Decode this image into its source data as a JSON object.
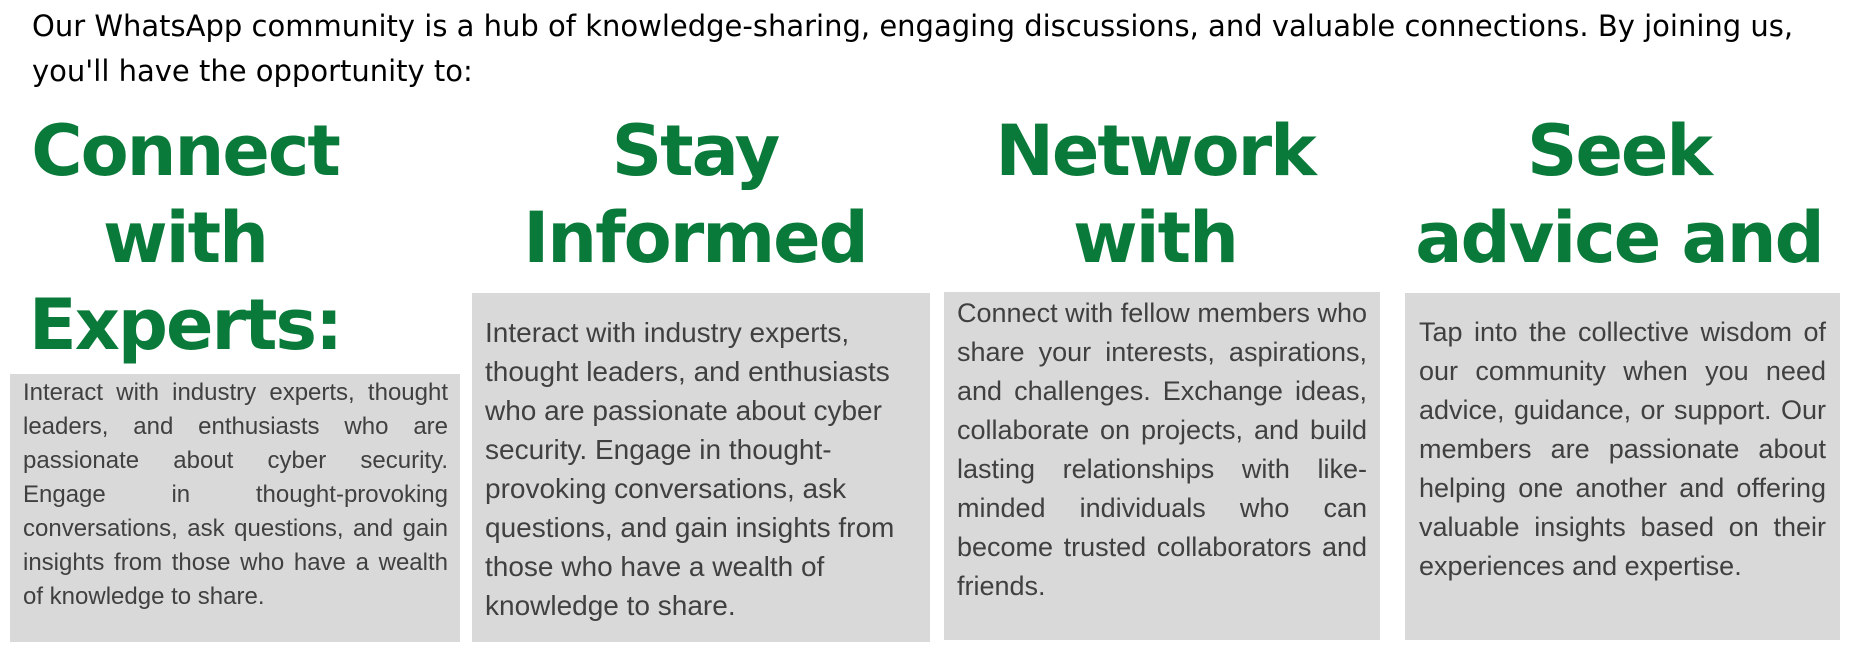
{
  "intro_text": "Our WhatsApp community is a hub of knowledge-sharing, engaging discussions, and valuable connections. By joining us, you'll have the opportunity to:",
  "accent_color": "#0a7a3a",
  "box_color": "#d9d9d9",
  "columns": [
    {
      "heading": "Connect with Experts:",
      "body": "Interact with industry experts, thought leaders, and enthusiasts who are passionate about cyber security. Engage in thought-provoking conversations, ask questions, and gain insights from those who have a wealth of knowledge to share."
    },
    {
      "heading": "Stay Informed",
      "body": "Interact with industry experts, thought leaders, and enthusiasts who are passionate about cyber security. Engage in thought-provoking conversations, ask questions, and gain insights from those who have a wealth of knowledge to share."
    },
    {
      "heading": "Network with peers",
      "body": "Connect with fellow members who share your interests, aspirations, and challenges. Exchange ideas, collaborate on projects, and build lasting relationships with like-minded individuals who can become trusted collaborators and friends."
    },
    {
      "heading": "Seek advice and support",
      "body": "Tap into the collective wisdom of our community when you need advice, guidance, or support. Our members are passionate about helping one another and offering valuable insights based on their experiences and expertise."
    }
  ]
}
